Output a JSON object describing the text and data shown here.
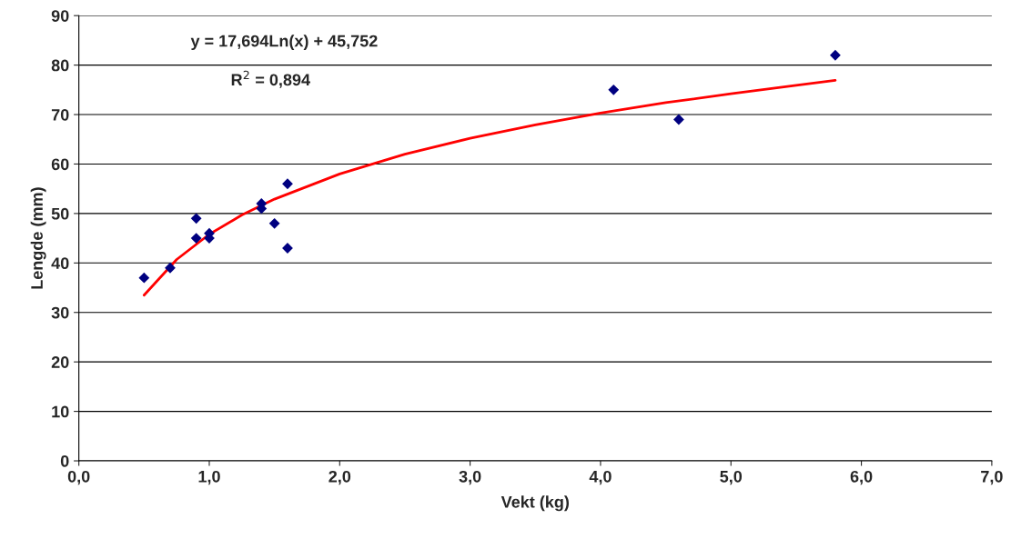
{
  "chart_data": {
    "type": "scatter",
    "xlabel": "Vekt (kg)",
    "ylabel": "Lengde (mm)",
    "annotations": [
      "y = 17,694Ln(x) + 45,752",
      "R$^{2}$ = 0,894"
    ],
    "series": [
      {
        "color": "#000080",
        "marker": "diamond",
        "x": [
          0.5,
          0.7,
          0.9,
          0.9,
          1.0,
          1.0,
          1.4,
          1.4,
          1.5,
          1.6,
          1.6,
          4.1,
          4.6,
          5.8
        ],
        "values": [
          37,
          39,
          49,
          45,
          46,
          45,
          52,
          51,
          48,
          56,
          43,
          75,
          69,
          82
        ]
      },
      {
        "type": "line",
        "color": "#ff0000",
        "marker": "none",
        "x": [
          0.5,
          0.75,
          1.0,
          1.25,
          1.5,
          2.0,
          2.5,
          3.0,
          3.5,
          4.0,
          4.5,
          5.0,
          5.5,
          5.8
        ],
        "values": [
          33.5,
          40.7,
          45.8,
          49.7,
          52.9,
          58.0,
          62.0,
          65.2,
          67.9,
          70.3,
          72.4,
          74.2,
          75.9,
          76.9
        ]
      }
    ],
    "xlim": [
      0,
      7
    ],
    "xticks": [
      {
        "value": 0,
        "label": "0,0"
      },
      {
        "value": 1,
        "label": "1,0"
      },
      {
        "value": 2,
        "label": "2,0"
      },
      {
        "value": 3,
        "label": "3,0"
      },
      {
        "value": 4,
        "label": "4,0"
      },
      {
        "value": 5,
        "label": "5,0"
      },
      {
        "value": 6,
        "label": "6,0"
      },
      {
        "value": 7,
        "label": "7,0"
      }
    ],
    "ylim": [
      0,
      90
    ],
    "yticks": [
      0,
      10,
      20,
      30,
      40,
      50,
      60,
      70,
      80,
      90
    ],
    "grid": "y",
    "legend": false
  }
}
